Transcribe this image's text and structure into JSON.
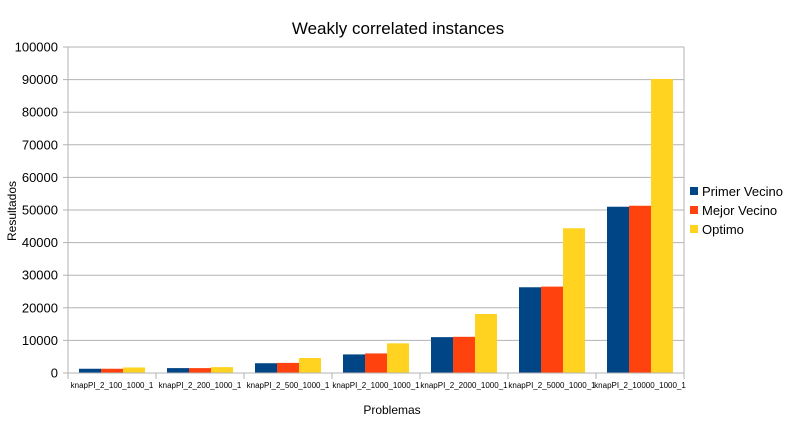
{
  "chart_data": {
    "type": "bar",
    "title": "Weakly correlated instances",
    "xlabel": "Problemas",
    "ylabel": "Resultados",
    "ylim": [
      0,
      100000
    ],
    "ytick_step": 10000,
    "grid": true,
    "legend_position": "right",
    "categories": [
      "knapPI_2_100_1000_1",
      "knapPI_2_200_1000_1",
      "knapPI_2_500_1000_1",
      "knapPI_2_1000_1000_1",
      "knapPI_2_2000_1000_1",
      "knapPI_2_5000_1000_1",
      "knapPI_2_10000_1000_1"
    ],
    "series": [
      {
        "name": "Primer Vecino",
        "color": "#004586",
        "values": [
          1300,
          1500,
          3000,
          5700,
          11000,
          26300,
          51000
        ]
      },
      {
        "name": "Mejor Vecino",
        "color": "#ff420e",
        "values": [
          1300,
          1500,
          3100,
          6000,
          11100,
          26500,
          51300
        ]
      },
      {
        "name": "Optimo",
        "color": "#ffd320",
        "values": [
          1700,
          1800,
          4600,
          9100,
          18100,
          44400,
          90200
        ]
      }
    ]
  }
}
